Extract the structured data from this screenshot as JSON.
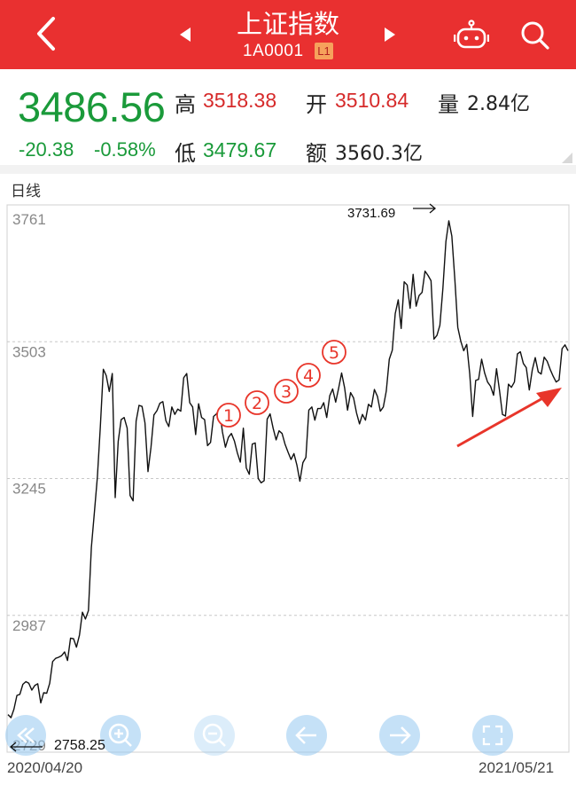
{
  "header": {
    "title": "上证指数",
    "code": "1A0001",
    "level_badge": "L1",
    "bg_color": "#e93030",
    "icons": [
      "back-icon",
      "prev-stock-icon",
      "next-stock-icon",
      "robot-icon",
      "search-icon"
    ]
  },
  "quote": {
    "price": "3486.56",
    "change": "-20.38",
    "change_pct": "-0.58%",
    "high_label": "高",
    "high": "3518.38",
    "open_label": "开",
    "open": "3510.84",
    "volume_label": "量",
    "volume": "2.84亿",
    "low_label": "低",
    "low": "3479.67",
    "amount_label": "额",
    "amount": "3560.3亿"
  },
  "period_label": "日线",
  "chart_data": {
    "type": "line",
    "y_ticks": [
      "3761",
      "3503",
      "3245",
      "2987",
      "2729"
    ],
    "ylim": [
      2729,
      3761
    ],
    "x_start": "2020/04/20",
    "x_end": "2021/05/21",
    "max_label": "3731.69",
    "min_label": "2758.25",
    "annotations": [
      "①",
      "②",
      "③",
      "④",
      "⑤"
    ],
    "series": [
      {
        "values": [
          2800,
          2794,
          2810,
          2836,
          2838,
          2857,
          2862,
          2859,
          2846,
          2855,
          2858,
          2822,
          2841,
          2840,
          2859,
          2900,
          2906,
          2908,
          2911,
          2918,
          2902,
          2944,
          2943,
          2927,
          2950,
          2993,
          2980,
          2996,
          3115,
          3181,
          3248,
          3342,
          3451,
          3439,
          3409,
          3443,
          3209,
          3315,
          3356,
          3360,
          3340,
          3213,
          3203,
          3353,
          3383,
          3381,
          3350,
          3258,
          3304,
          3365,
          3373,
          3387,
          3390,
          3354,
          3343,
          3380,
          3366,
          3376,
          3372,
          3435,
          3443,
          3388,
          3380,
          3328,
          3386,
          3360,
          3356,
          3307,
          3313,
          3362,
          3367,
          3376,
          3333,
          3304,
          3323,
          3330,
          3316,
          3293,
          3276,
          3340,
          3265,
          3253,
          3310,
          3312,
          3245,
          3237,
          3241,
          3357,
          3367,
          3340,
          3318,
          3335,
          3330,
          3310,
          3295,
          3281,
          3292,
          3270,
          3240,
          3275,
          3285,
          3374,
          3380,
          3355,
          3377,
          3377,
          3388,
          3360,
          3401,
          3414,
          3389,
          3415,
          3444,
          3416,
          3374,
          3407,
          3397,
          3369,
          3348,
          3366,
          3355,
          3385,
          3380,
          3413,
          3400,
          3372,
          3380,
          3410,
          3470,
          3487,
          3556,
          3582,
          3528,
          3616,
          3610,
          3566,
          3630,
          3570,
          3590,
          3596,
          3636,
          3628,
          3618,
          3508,
          3515,
          3534,
          3604,
          3692,
          3731,
          3702,
          3620,
          3530,
          3504,
          3486,
          3498,
          3442,
          3362,
          3430,
          3432,
          3470,
          3444,
          3427,
          3419,
          3402,
          3452,
          3411,
          3366,
          3363,
          3423,
          3417,
          3427,
          3480,
          3484,
          3462,
          3454,
          3412,
          3450,
          3473,
          3446,
          3442,
          3474,
          3466,
          3451,
          3438,
          3427,
          3431,
          3490,
          3497,
          3486
        ]
      }
    ]
  },
  "controls": [
    "fast-back",
    "zoom-in",
    "zoom-out",
    "move-left",
    "move-right",
    "fullscreen"
  ]
}
